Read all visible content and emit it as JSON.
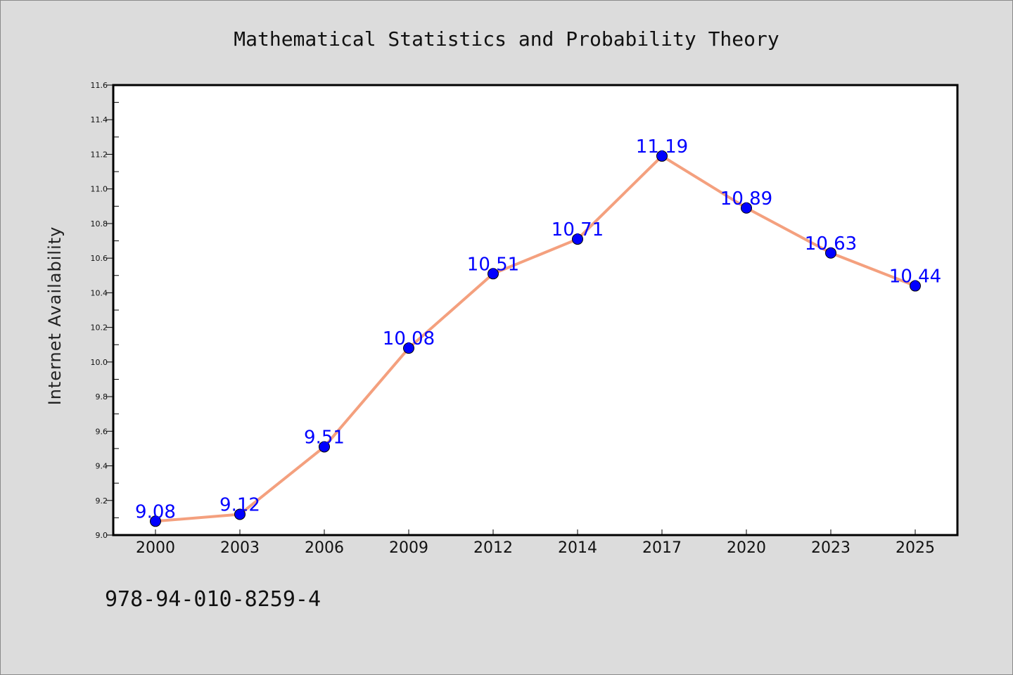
{
  "chart_data": {
    "type": "line",
    "title": "Mathematical Statistics and Probability Theory",
    "xlabel": "",
    "ylabel": "Internet Availability",
    "categories": [
      "2000",
      "2003",
      "2006",
      "2009",
      "2012",
      "2014",
      "2017",
      "2020",
      "2023",
      "2025"
    ],
    "series": [
      {
        "values": [
          9.08,
          9.12,
          9.51,
          10.08,
          10.51,
          10.71,
          11.19,
          10.89,
          10.63,
          10.44
        ]
      }
    ],
    "ylim": [
      9.0,
      11.6
    ],
    "yticks": [
      "9.0",
      "9.2",
      "9.4",
      "9.6",
      "9.8",
      "10.0",
      "10.2",
      "10.4",
      "10.6",
      "10.8",
      "11.0",
      "11.2",
      "11.4",
      "11.6"
    ],
    "data_labels": [
      "9.08",
      "9.12",
      "9.51",
      "10.08",
      "10.51",
      "10.71",
      "11.19",
      "10.89",
      "10.63",
      "10.44"
    ],
    "grid": false,
    "colors": {
      "line": "#f4a07e",
      "marker": "#0000ff",
      "label": "#0000ff",
      "background": "#dcdcdc",
      "plot_bg": "#ffffff"
    }
  },
  "footer": {
    "isbn": "978-94-010-8259-4"
  }
}
